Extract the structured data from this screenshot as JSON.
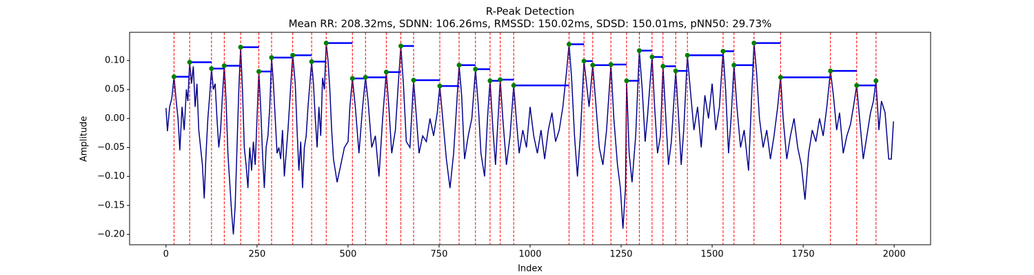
{
  "chart_data": {
    "type": "line",
    "title": "R-Peak Detection",
    "subtitle": "Mean RR: 208.32ms, SDNN: 106.26ms, RMSSD: 150.02ms, SDSD: 150.01ms, pNN50: 29.73%",
    "x_label": "Index",
    "y_label": "Amplitude",
    "xlim": [
      -100,
      2100
    ],
    "ylim": [
      -0.2178,
      0.1486
    ],
    "xticks": [
      0,
      250,
      500,
      750,
      1000,
      1250,
      1500,
      1750,
      2000
    ],
    "yticks": [
      {
        "value": -0.2,
        "label": "−0.20"
      },
      {
        "value": -0.15,
        "label": "−0.15"
      },
      {
        "value": -0.1,
        "label": "−0.10"
      },
      {
        "value": -0.05,
        "label": "−0.05"
      },
      {
        "value": 0,
        "label": "0.00"
      },
      {
        "value": 0.05,
        "label": "0.05"
      },
      {
        "value": 0.1,
        "label": "0.10"
      }
    ],
    "signal": {
      "color": "#00008b",
      "x": [
        0,
        4,
        10,
        16,
        22,
        28,
        33,
        38,
        44,
        50,
        56,
        60,
        65,
        70,
        75,
        80,
        85,
        90,
        95,
        100,
        105,
        110,
        115,
        120,
        125,
        130,
        135,
        140,
        145,
        150,
        155,
        160,
        165,
        170,
        175,
        180,
        185,
        190,
        195,
        200,
        205,
        210,
        215,
        220,
        225,
        230,
        235,
        240,
        245,
        250,
        255,
        260,
        265,
        270,
        275,
        280,
        285,
        290,
        295,
        300,
        305,
        310,
        315,
        320,
        325,
        330,
        335,
        340,
        348,
        355,
        360,
        365,
        370,
        375,
        380,
        385,
        390,
        400,
        405,
        410,
        415,
        420,
        425,
        430,
        435,
        440,
        445,
        450,
        455,
        460,
        470,
        480,
        490,
        500,
        505,
        512,
        520,
        530,
        540,
        548,
        555,
        565,
        575,
        585,
        595,
        605,
        612,
        620,
        630,
        637,
        645,
        652,
        660,
        670,
        680,
        688,
        695,
        705,
        715,
        725,
        735,
        745,
        752,
        760,
        770,
        780,
        790,
        798,
        805,
        812,
        820,
        830,
        840,
        850,
        858,
        865,
        875,
        883,
        890,
        898,
        905,
        912,
        918,
        925,
        935,
        945,
        955,
        962,
        970,
        980,
        990,
        1000,
        1010,
        1020,
        1030,
        1040,
        1050,
        1060,
        1070,
        1080,
        1090,
        1100,
        1107,
        1114,
        1122,
        1130,
        1138,
        1148,
        1155,
        1162,
        1172,
        1180,
        1190,
        1200,
        1210,
        1222,
        1230,
        1240,
        1248,
        1255,
        1262,
        1265,
        1272,
        1280,
        1290,
        1300,
        1308,
        1316,
        1322,
        1335,
        1342,
        1350,
        1358,
        1365,
        1372,
        1380,
        1388,
        1400,
        1408,
        1415,
        1422,
        1432,
        1440,
        1450,
        1460,
        1470,
        1480,
        1490,
        1500,
        1510,
        1520,
        1530,
        1537,
        1545,
        1552,
        1560,
        1568,
        1578,
        1588,
        1600,
        1608,
        1615,
        1622,
        1630,
        1640,
        1650,
        1660,
        1670,
        1680,
        1688,
        1695,
        1705,
        1715,
        1725,
        1735,
        1745,
        1755,
        1765,
        1775,
        1785,
        1795,
        1805,
        1815,
        1825,
        1833,
        1842,
        1850,
        1860,
        1870,
        1880,
        1888,
        1897,
        1905,
        1915,
        1925,
        1935,
        1943,
        1950,
        1958,
        1965,
        1975,
        1985,
        1992,
        1998
      ],
      "values": [
        0.018,
        -0.022,
        0.02,
        0.035,
        0.072,
        0.03,
        0.0,
        -0.055,
        0.02,
        -0.02,
        0.05,
        0.03,
        0.097,
        0.06,
        0.09,
        0.02,
        0.06,
        -0.02,
        -0.05,
        -0.08,
        -0.138,
        -0.06,
        0.0,
        0.04,
        0.086,
        0.05,
        0.06,
        0.0,
        -0.05,
        -0.02,
        0.04,
        0.091,
        0.03,
        -0.06,
        -0.11,
        -0.16,
        -0.2,
        -0.15,
        -0.05,
        0.05,
        0.123,
        0.05,
        -0.05,
        -0.08,
        -0.12,
        -0.05,
        -0.09,
        -0.04,
        -0.08,
        0.0,
        0.081,
        0.02,
        -0.06,
        -0.12,
        -0.05,
        -0.03,
        0.02,
        0.105,
        0.06,
        0.0,
        -0.06,
        -0.05,
        -0.07,
        -0.02,
        -0.1,
        -0.06,
        -0.02,
        0.03,
        0.109,
        0.06,
        -0.02,
        -0.09,
        -0.04,
        -0.12,
        -0.05,
        -0.03,
        0.02,
        0.098,
        0.06,
        0.0,
        -0.05,
        0.02,
        -0.03,
        0.07,
        0.05,
        0.13,
        0.1,
        0.05,
        -0.02,
        -0.07,
        -0.11,
        -0.08,
        -0.05,
        -0.04,
        0.02,
        0.069,
        0.02,
        -0.06,
        0.02,
        0.071,
        0.03,
        -0.05,
        -0.03,
        -0.1,
        0.0,
        0.08,
        0.02,
        -0.06,
        -0.02,
        0.05,
        0.125,
        0.06,
        -0.04,
        -0.05,
        0.066,
        0.0,
        -0.06,
        -0.03,
        -0.04,
        0.0,
        -0.03,
        0.01,
        0.056,
        0.0,
        -0.07,
        -0.12,
        -0.06,
        0.02,
        0.092,
        0.04,
        -0.07,
        -0.03,
        0.0,
        0.085,
        0.02,
        -0.06,
        -0.1,
        0.0,
        0.065,
        -0.02,
        -0.08,
        0.0,
        0.067,
        0.0,
        -0.08,
        -0.03,
        0.057,
        0.0,
        -0.06,
        -0.02,
        -0.05,
        0.02,
        -0.03,
        -0.06,
        -0.02,
        -0.07,
        -0.02,
        0.01,
        -0.04,
        -0.02,
        0.02,
        0.08,
        0.128,
        0.07,
        -0.03,
        -0.1,
        -0.03,
        0.099,
        0.06,
        0.02,
        0.092,
        0.03,
        -0.05,
        -0.08,
        -0.02,
        0.093,
        0.0,
        -0.08,
        -0.12,
        -0.19,
        -0.12,
        0.065,
        -0.06,
        -0.11,
        -0.03,
        0.117,
        0.05,
        -0.04,
        0.0,
        0.106,
        0.02,
        -0.06,
        -0.03,
        0.09,
        0.01,
        -0.08,
        -0.04,
        0.082,
        0.0,
        -0.08,
        -0.02,
        0.109,
        0.05,
        -0.02,
        0.02,
        -0.05,
        0.04,
        0.0,
        0.06,
        -0.02,
        0.02,
        0.116,
        0.05,
        -0.06,
        0.0,
        0.092,
        0.02,
        -0.05,
        -0.02,
        -0.09,
        0.03,
        0.13,
        0.08,
        0.0,
        -0.05,
        -0.02,
        -0.07,
        -0.03,
        0.02,
        0.071,
        0.0,
        -0.07,
        -0.03,
        0.0,
        -0.05,
        -0.08,
        -0.14,
        -0.06,
        -0.02,
        -0.04,
        0.0,
        -0.03,
        0.02,
        0.082,
        0.04,
        -0.02,
        0.01,
        -0.06,
        -0.03,
        -0.01,
        0.02,
        0.057,
        0.0,
        -0.07,
        -0.03,
        0.01,
        0.03,
        0.065,
        -0.02,
        0.03,
        0.01,
        -0.07,
        -0.07,
        -0.005
      ]
    },
    "peaks": {
      "color": "#008000",
      "line_color": "#ff0000",
      "segment_color": "#0000ff",
      "x": [
        22,
        65,
        125,
        160,
        205,
        255,
        290,
        348,
        400,
        440,
        512,
        548,
        605,
        645,
        680,
        752,
        805,
        850,
        890,
        918,
        955,
        1107,
        1148,
        1172,
        1222,
        1265,
        1300,
        1335,
        1365,
        1400,
        1432,
        1530,
        1560,
        1615,
        1688,
        1825,
        1897,
        1950
      ],
      "values": [
        0.072,
        0.097,
        0.086,
        0.091,
        0.123,
        0.081,
        0.105,
        0.109,
        0.098,
        0.13,
        0.069,
        0.071,
        0.08,
        0.125,
        0.066,
        0.056,
        0.092,
        0.085,
        0.065,
        0.067,
        0.057,
        0.128,
        0.099,
        0.092,
        0.093,
        0.065,
        0.117,
        0.106,
        0.09,
        0.082,
        0.109,
        0.116,
        0.092,
        0.13,
        0.071,
        0.082,
        0.057,
        0.065
      ]
    }
  }
}
